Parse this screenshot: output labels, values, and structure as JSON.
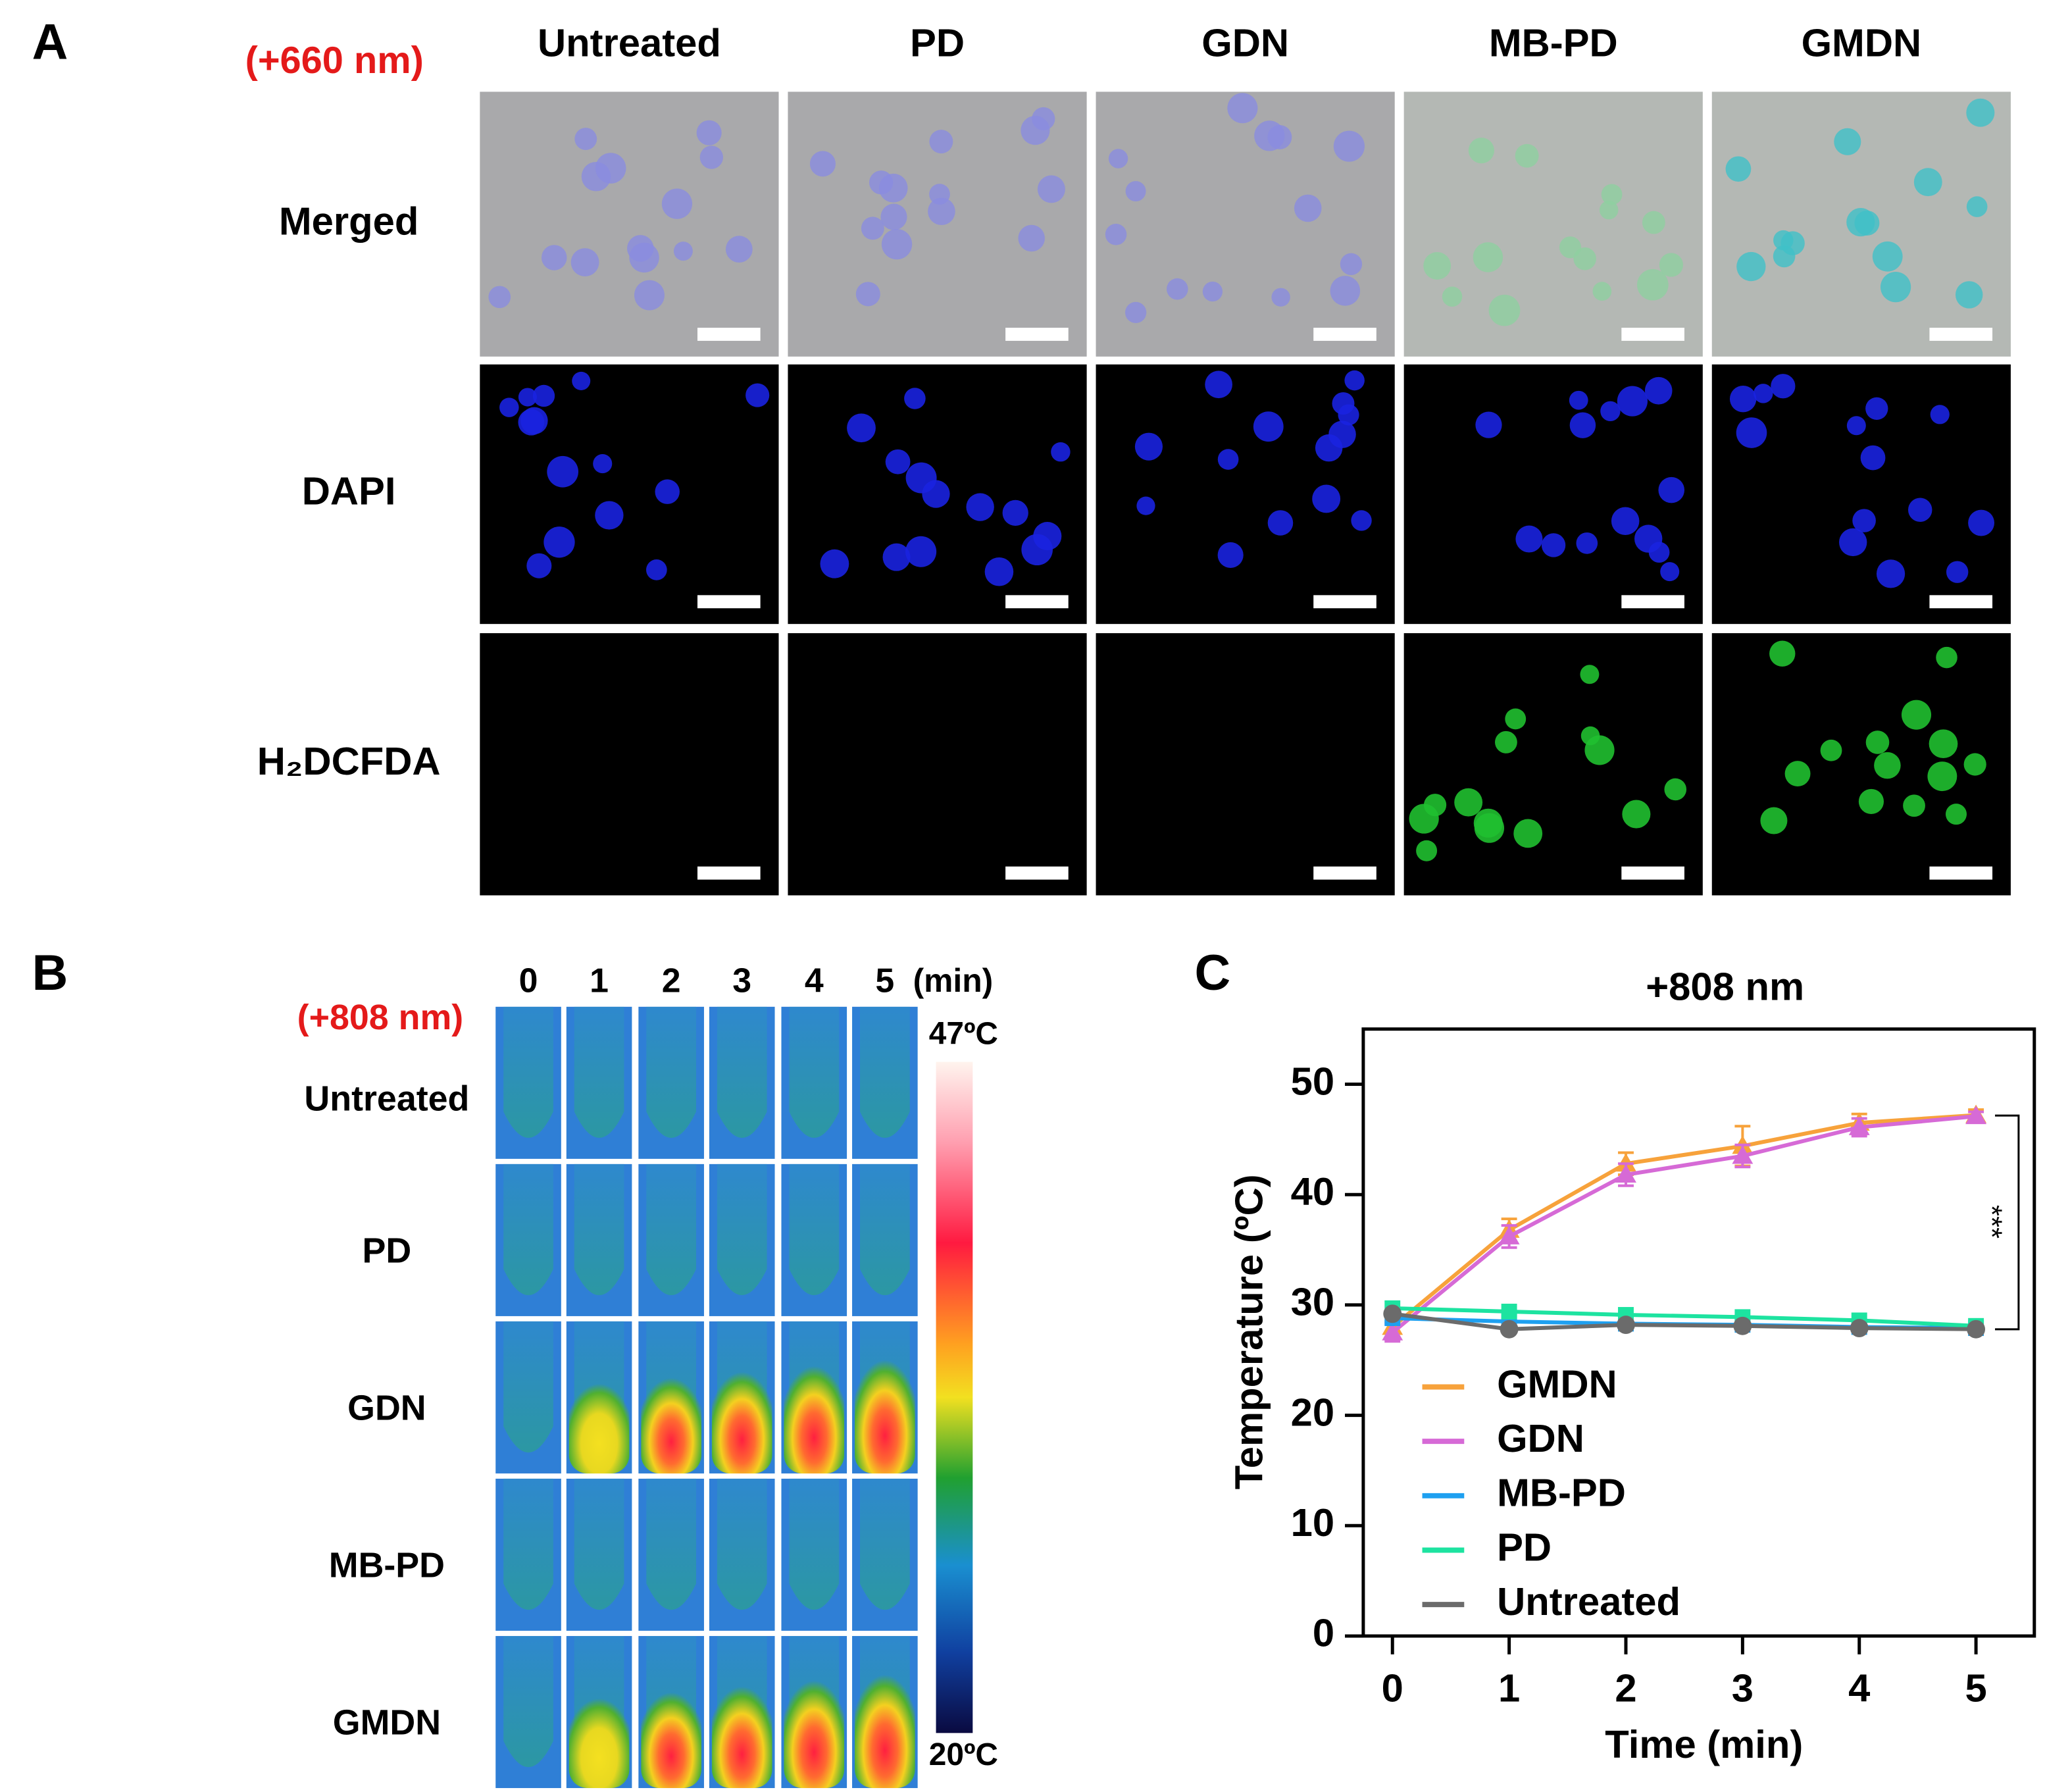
{
  "panel_a": {
    "label": "A",
    "condition": "(+660 nm)",
    "columns": [
      "Untreated",
      "PD",
      "GDN",
      "MB-PD",
      "GMDN"
    ],
    "rows": [
      "Merged",
      "DAPI",
      "H₂DCFDA"
    ]
  },
  "panel_b": {
    "label": "B",
    "condition": "(+808 nm)",
    "times": [
      "0",
      "1",
      "2",
      "3",
      "4",
      "5"
    ],
    "time_unit": "(min)",
    "rows": [
      "Untreated",
      "PD",
      "GDN",
      "MB-PD",
      "GMDN"
    ],
    "scale_max": "47ºC",
    "scale_min": "20ºC"
  },
  "chart_data": {
    "panel_label": "C",
    "type": "line",
    "title": "+808 nm",
    "x_label": "Time (min)",
    "y_label": "Temperature (ºC)",
    "x": [
      0,
      1,
      2,
      3,
      4,
      5
    ],
    "xlim": [
      -0.25,
      5.5
    ],
    "xticks": [
      0,
      1,
      2,
      3,
      4,
      5
    ],
    "ylim": [
      0,
      55
    ],
    "yticks": [
      0,
      10,
      20,
      30,
      40,
      50
    ],
    "series": [
      {
        "name": "GMDN",
        "color": "#f7a23b",
        "marker": "triangle",
        "values": [
          28,
          36.8,
          42.8,
          44.4,
          46.5,
          47.2
        ],
        "errors": [
          0.5,
          1,
          1,
          1.8,
          0.8,
          0.5
        ]
      },
      {
        "name": "GDN",
        "color": "#d66ad6",
        "marker": "triangle",
        "values": [
          27.5,
          36.2,
          41.8,
          43.5,
          46.1,
          47.1
        ],
        "errors": [
          0.8,
          1,
          1,
          1,
          0.8,
          0.4
        ]
      },
      {
        "name": "MB-PD",
        "color": "#1ea0f0",
        "marker": "square",
        "values": [
          28.8,
          28.5,
          28.3,
          28.2,
          28,
          27.9
        ]
      },
      {
        "name": "PD",
        "color": "#1de3a0",
        "marker": "square",
        "values": [
          29.7,
          29.4,
          29.1,
          28.9,
          28.6,
          28.1
        ]
      },
      {
        "name": "Untreated",
        "color": "#6b6b6b",
        "marker": "circle",
        "values": [
          29.2,
          27.8,
          28.2,
          28.1,
          27.9,
          27.8
        ]
      }
    ],
    "annotation": "***"
  }
}
